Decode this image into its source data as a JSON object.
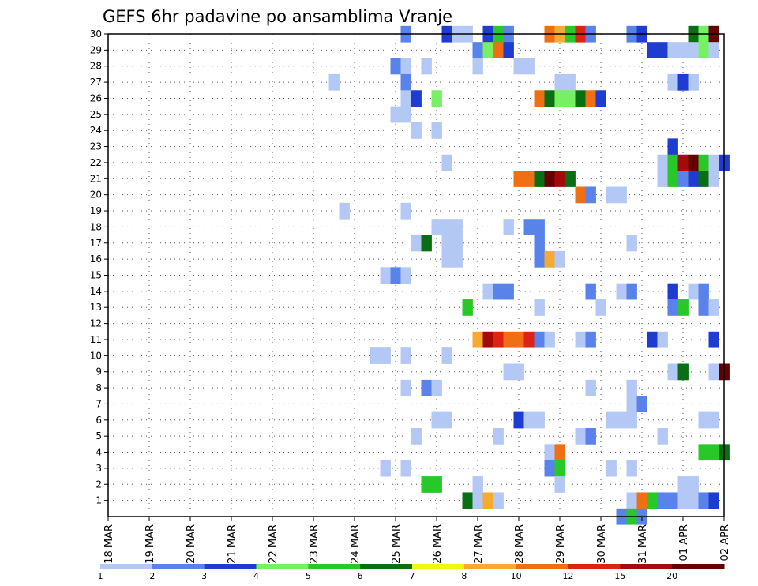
{
  "chart_data": {
    "type": "heatmap",
    "title": "GEFS 6hr padavine po ansamblima Vranje",
    "xlabel": "",
    "ylabel": "",
    "x_tick_labels": [
      "18 MAR",
      "19 MAR",
      "20 MAR",
      "21 MAR",
      "22 MAR",
      "23 MAR",
      "24 MAR",
      "25 MAR",
      "26 MAR",
      "27 MAR",
      "28 MAR",
      "29 MAR",
      "30 MAR",
      "31 MAR",
      "01 APR",
      "02 APR"
    ],
    "y_tick_labels": [
      "1",
      "2",
      "3",
      "4",
      "5",
      "6",
      "7",
      "8",
      "9",
      "10",
      "11",
      "12",
      "13",
      "14",
      "15",
      "16",
      "17",
      "18",
      "19",
      "20",
      "21",
      "22",
      "23",
      "24",
      "25",
      "26",
      "27",
      "28",
      "29",
      "30"
    ],
    "ylim": [
      0,
      30
    ],
    "xlim_days": [
      0,
      15
    ],
    "grid": true,
    "legend_labels": [
      "1",
      "2",
      "3",
      "4",
      "5",
      "6",
      "7",
      "8",
      "10",
      "12",
      "15",
      "20"
    ],
    "legend_colors": [
      "#b4c8f5",
      "#5a82eb",
      "#1e3cd2",
      "#78f064",
      "#28c828",
      "#0a6e14",
      "#f5f514",
      "#f5aa32",
      "#f06e14",
      "#dc2314",
      "#a50a0a",
      "#640000"
    ],
    "cells": [
      [
        30,
        7.25,
        2
      ],
      [
        30,
        8.25,
        3
      ],
      [
        30,
        8.5,
        1
      ],
      [
        30,
        8.75,
        1
      ],
      [
        30,
        9.25,
        3
      ],
      [
        30,
        9.5,
        5
      ],
      [
        30,
        9.75,
        2
      ],
      [
        30,
        10.75,
        10
      ],
      [
        30,
        11,
        8
      ],
      [
        30,
        11.25,
        5
      ],
      [
        30,
        11.5,
        12
      ],
      [
        30,
        11.75,
        2
      ],
      [
        30,
        12.75,
        2
      ],
      [
        30,
        13,
        3
      ],
      [
        30,
        14.25,
        6
      ],
      [
        30,
        14.5,
        4
      ],
      [
        30,
        14.75,
        20
      ],
      [
        29,
        9,
        2
      ],
      [
        29,
        9.25,
        4
      ],
      [
        29,
        9.5,
        10
      ],
      [
        29,
        9.75,
        3
      ],
      [
        29,
        13.25,
        3
      ],
      [
        29,
        13.5,
        3
      ],
      [
        29,
        13.75,
        1
      ],
      [
        29,
        14,
        1
      ],
      [
        29,
        14.25,
        1
      ],
      [
        29,
        14.5,
        4
      ],
      [
        29,
        14.75,
        1
      ],
      [
        28,
        7,
        2
      ],
      [
        28,
        7.25,
        1
      ],
      [
        28,
        7.75,
        1
      ],
      [
        28,
        9,
        1
      ],
      [
        28,
        10,
        1
      ],
      [
        28,
        10.25,
        1
      ],
      [
        27,
        5.5,
        1
      ],
      [
        27,
        7.25,
        2
      ],
      [
        27,
        11,
        1
      ],
      [
        27,
        11.25,
        1
      ],
      [
        27,
        13.75,
        1
      ],
      [
        27,
        14,
        3
      ],
      [
        27,
        14.25,
        1
      ],
      [
        26,
        7.25,
        1
      ],
      [
        26,
        7.5,
        3
      ],
      [
        26,
        8,
        4
      ],
      [
        26,
        10.5,
        10
      ],
      [
        26,
        10.75,
        6
      ],
      [
        26,
        11,
        4
      ],
      [
        26,
        11.25,
        4
      ],
      [
        26,
        11.5,
        6
      ],
      [
        26,
        11.75,
        10
      ],
      [
        26,
        12,
        3
      ],
      [
        25,
        7,
        1
      ],
      [
        25,
        7.25,
        1
      ],
      [
        24,
        7.5,
        1
      ],
      [
        24,
        8,
        1
      ],
      [
        23,
        13.75,
        3
      ],
      [
        22,
        8.25,
        1
      ],
      [
        22,
        13.5,
        1
      ],
      [
        22,
        13.75,
        5
      ],
      [
        22,
        14,
        15
      ],
      [
        22,
        14.25,
        20
      ],
      [
        22,
        14.5,
        5
      ],
      [
        22,
        14.75,
        1
      ],
      [
        22,
        15,
        3
      ],
      [
        21,
        10,
        10
      ],
      [
        21,
        10.25,
        10
      ],
      [
        21,
        10.5,
        6
      ],
      [
        21,
        10.75,
        20
      ],
      [
        21,
        11,
        15
      ],
      [
        21,
        11.25,
        6
      ],
      [
        21,
        13.5,
        1
      ],
      [
        21,
        13.75,
        5
      ],
      [
        21,
        14,
        2
      ],
      [
        21,
        14.25,
        3
      ],
      [
        21,
        14.5,
        6
      ],
      [
        21,
        14.75,
        1
      ],
      [
        20,
        11.5,
        10
      ],
      [
        20,
        11.75,
        2
      ],
      [
        20,
        12.25,
        1
      ],
      [
        20,
        12.5,
        1
      ],
      [
        19,
        5.75,
        1
      ],
      [
        19,
        7.25,
        1
      ],
      [
        18,
        8,
        1
      ],
      [
        18,
        8.25,
        1
      ],
      [
        18,
        8.5,
        1
      ],
      [
        18,
        9.75,
        1
      ],
      [
        18,
        10.25,
        2
      ],
      [
        18,
        10.5,
        2
      ],
      [
        17,
        7.5,
        1
      ],
      [
        17,
        7.75,
        6
      ],
      [
        17,
        8.25,
        1
      ],
      [
        17,
        8.5,
        1
      ],
      [
        17,
        10.5,
        2
      ],
      [
        17,
        12.75,
        1
      ],
      [
        16,
        8.25,
        1
      ],
      [
        16,
        8.5,
        1
      ],
      [
        16,
        10.5,
        2
      ],
      [
        16,
        10.75,
        8
      ],
      [
        16,
        11,
        1
      ],
      [
        15,
        6.75,
        1
      ],
      [
        15,
        7,
        2
      ],
      [
        15,
        7.25,
        1
      ],
      [
        14,
        9.25,
        1
      ],
      [
        14,
        9.5,
        2
      ],
      [
        14,
        9.75,
        2
      ],
      [
        14,
        11.75,
        2
      ],
      [
        14,
        12.5,
        1
      ],
      [
        14,
        12.75,
        2
      ],
      [
        14,
        13.75,
        3
      ],
      [
        14,
        14.25,
        1
      ],
      [
        14,
        14.5,
        2
      ],
      [
        13,
        8.75,
        5
      ],
      [
        13,
        10.5,
        1
      ],
      [
        13,
        12,
        1
      ],
      [
        13,
        13.75,
        2
      ],
      [
        13,
        14,
        5
      ],
      [
        13,
        14.5,
        2
      ],
      [
        13,
        14.75,
        1
      ],
      [
        11,
        9,
        8
      ],
      [
        11,
        9.25,
        15
      ],
      [
        11,
        9.5,
        12
      ],
      [
        11,
        9.75,
        10
      ],
      [
        11,
        10,
        10
      ],
      [
        11,
        10.25,
        12
      ],
      [
        11,
        10.5,
        2
      ],
      [
        11,
        10.75,
        1
      ],
      [
        11,
        11.5,
        1
      ],
      [
        11,
        11.75,
        2
      ],
      [
        11,
        13.25,
        3
      ],
      [
        11,
        13.5,
        1
      ],
      [
        11,
        14.75,
        3
      ],
      [
        10,
        6.5,
        1
      ],
      [
        10,
        6.75,
        1
      ],
      [
        10,
        7.25,
        1
      ],
      [
        10,
        8.25,
        1
      ],
      [
        9,
        9.75,
        1
      ],
      [
        9,
        10,
        1
      ],
      [
        9,
        13.75,
        1
      ],
      [
        9,
        14,
        6
      ],
      [
        9,
        14.75,
        1
      ],
      [
        9,
        15,
        20
      ],
      [
        8,
        7.25,
        1
      ],
      [
        8,
        7.75,
        2
      ],
      [
        8,
        8,
        1
      ],
      [
        8,
        11.75,
        1
      ],
      [
        8,
        12.75,
        1
      ],
      [
        7,
        12.75,
        1
      ],
      [
        7,
        13,
        2
      ],
      [
        6,
        8,
        1
      ],
      [
        6,
        8.25,
        1
      ],
      [
        6,
        10,
        3
      ],
      [
        6,
        10.25,
        1
      ],
      [
        6,
        10.5,
        1
      ],
      [
        6,
        12.25,
        1
      ],
      [
        6,
        12.5,
        1
      ],
      [
        6,
        12.75,
        1
      ],
      [
        6,
        14.5,
        1
      ],
      [
        6,
        14.75,
        1
      ],
      [
        5,
        7.5,
        1
      ],
      [
        5,
        9.5,
        1
      ],
      [
        5,
        11.5,
        1
      ],
      [
        5,
        11.75,
        2
      ],
      [
        5,
        13.5,
        1
      ],
      [
        4,
        10.75,
        1
      ],
      [
        4,
        11,
        10
      ],
      [
        4,
        14.5,
        5
      ],
      [
        4,
        14.75,
        5
      ],
      [
        4,
        15,
        6
      ],
      [
        3,
        6.75,
        1
      ],
      [
        3,
        7.25,
        1
      ],
      [
        3,
        10.75,
        2
      ],
      [
        3,
        11,
        5
      ],
      [
        3,
        12.25,
        1
      ],
      [
        3,
        12.75,
        1
      ],
      [
        2,
        7.75,
        5
      ],
      [
        2,
        8,
        5
      ],
      [
        2,
        9,
        1
      ],
      [
        2,
        11,
        1
      ],
      [
        2,
        14,
        1
      ],
      [
        2,
        14.25,
        1
      ],
      [
        1,
        8.75,
        6
      ],
      [
        1,
        9,
        1
      ],
      [
        1,
        9.25,
        8
      ],
      [
        1,
        9.5,
        1
      ],
      [
        1,
        12.75,
        1
      ],
      [
        1,
        13,
        10
      ],
      [
        1,
        13.25,
        5
      ],
      [
        1,
        13.5,
        2
      ],
      [
        1,
        13.75,
        2
      ],
      [
        1,
        14,
        1
      ],
      [
        1,
        14.25,
        1
      ],
      [
        1,
        14.5,
        2
      ],
      [
        1,
        14.75,
        3
      ],
      [
        0,
        12.5,
        2
      ],
      [
        0,
        12.75,
        5
      ],
      [
        0,
        13,
        2
      ]
    ]
  }
}
